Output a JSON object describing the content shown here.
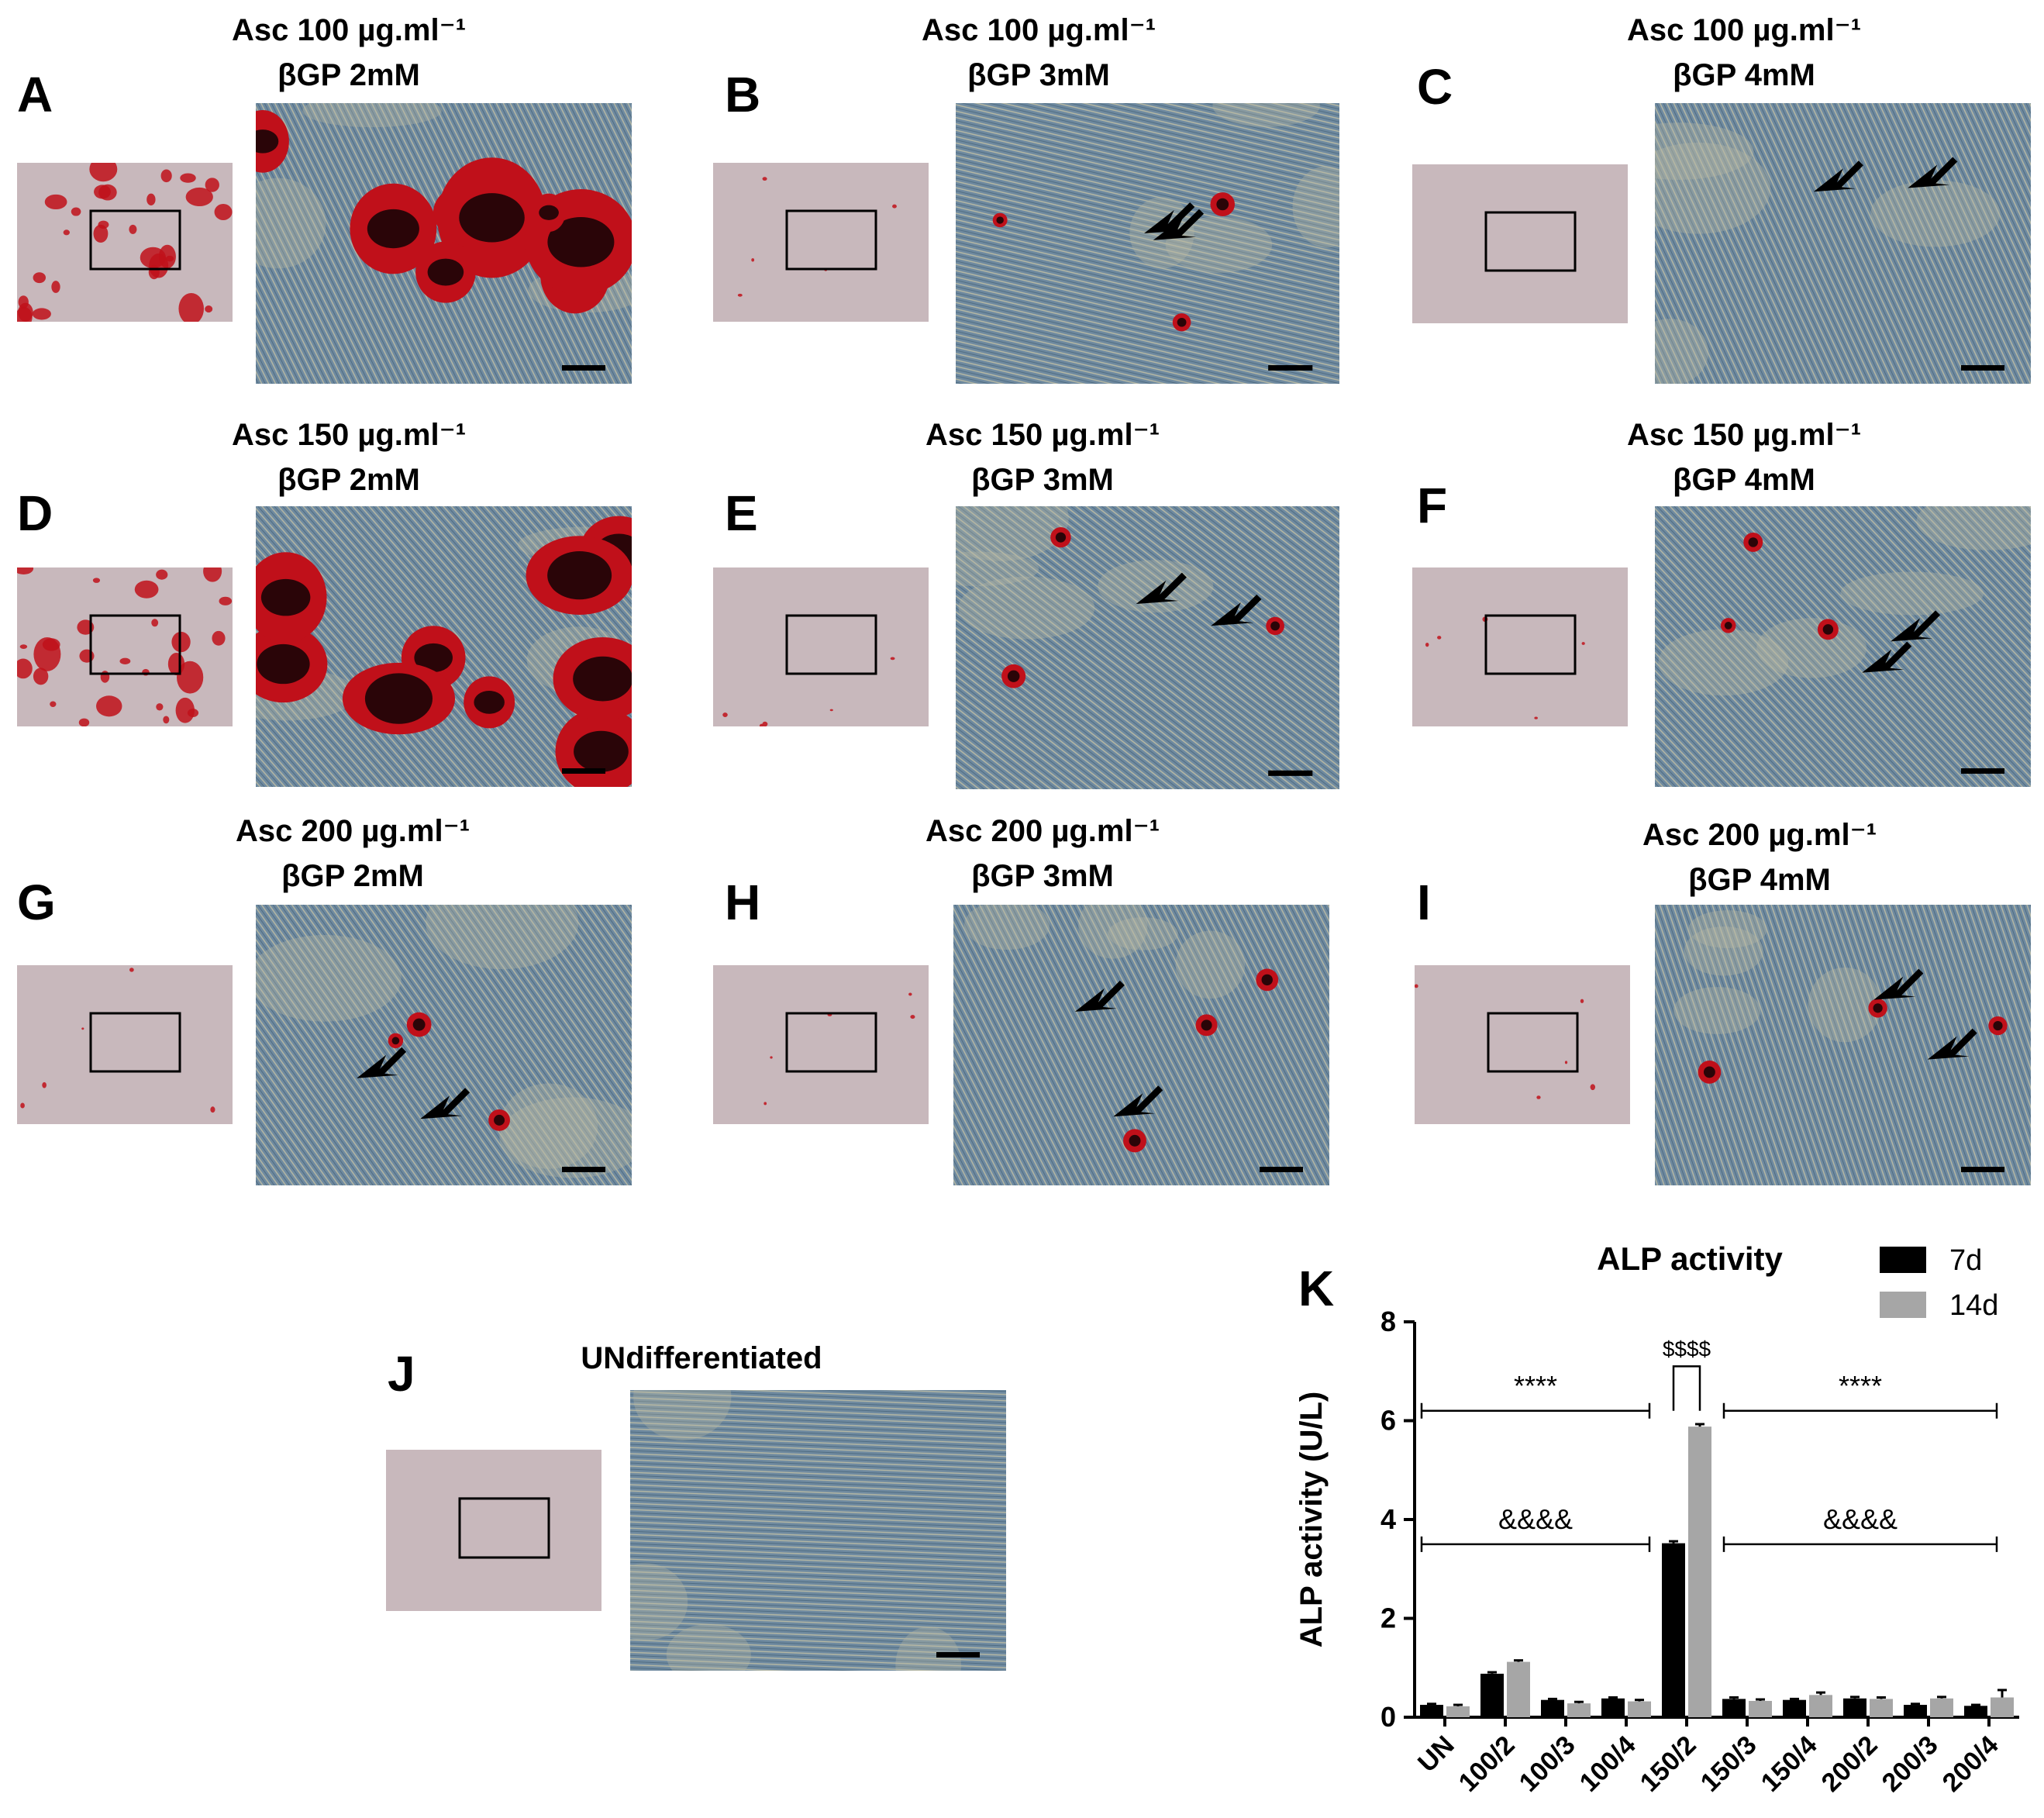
{
  "panels": [
    {
      "letter": "A",
      "asc": "Asc 100 µg.ml⁻¹",
      "bgp": "βGP 2mM",
      "stain": "heavy"
    },
    {
      "letter": "B",
      "asc": "Asc 100 µg.ml⁻¹",
      "bgp": "βGP 3mM",
      "stain": "sparse"
    },
    {
      "letter": "C",
      "asc": "Asc 100 µg.ml⁻¹",
      "bgp": "βGP 4mM",
      "stain": "none"
    },
    {
      "letter": "D",
      "asc": "Asc 150 µg.ml⁻¹",
      "bgp": "βGP 2mM",
      "stain": "heavy"
    },
    {
      "letter": "E",
      "asc": "Asc 150 µg.ml⁻¹",
      "bgp": "βGP 3mM",
      "stain": "sparse"
    },
    {
      "letter": "F",
      "asc": "Asc 150 µg.ml⁻¹",
      "bgp": "βGP 4mM",
      "stain": "sparse"
    },
    {
      "letter": "G",
      "asc": "Asc 200 µg.ml⁻¹",
      "bgp": "βGP 2mM",
      "stain": "sparse"
    },
    {
      "letter": "H",
      "asc": "Asc 200 µg.ml⁻¹",
      "bgp": "βGP 3mM",
      "stain": "sparse"
    },
    {
      "letter": "I",
      "asc": "Asc 200 µg.ml⁻¹",
      "bgp": "βGP 4mM",
      "stain": "sparse"
    },
    {
      "letter": "J",
      "asc": "UNdifferentiated",
      "bgp": "",
      "stain": "none"
    }
  ],
  "colors": {
    "stain": "#c0101a",
    "stain_dark": "#2a0508",
    "cells": "#6f8aa0",
    "cells_light": "#b6b8a4",
    "low_mag": "#c8b8bc",
    "bar_7d": "#000000",
    "bar_14d": "#a6a6a6"
  },
  "chart_letter": "K",
  "chart_data": {
    "type": "bar",
    "title": "ALP activity",
    "ylabel": "ALP activity (U/L)",
    "xlabel": "",
    "ylim": [
      0,
      8
    ],
    "yticks": [
      "0",
      "2",
      "4",
      "6",
      "8"
    ],
    "legend": "top-right",
    "categories": [
      "UN",
      "100/2",
      "100/3",
      "100/4",
      "150/2",
      "150/3",
      "150/4",
      "200/2",
      "200/3",
      "200/4"
    ],
    "series": [
      {
        "name": "7d",
        "values": [
          0.25,
          0.88,
          0.35,
          0.38,
          3.52,
          0.37,
          0.35,
          0.38,
          0.25,
          0.23
        ],
        "errors": [
          0.02,
          0.03,
          0.02,
          0.02,
          0.04,
          0.03,
          0.02,
          0.03,
          0.02,
          0.02
        ]
      },
      {
        "name": "14d",
        "values": [
          0.22,
          1.12,
          0.28,
          0.32,
          5.88,
          0.33,
          0.45,
          0.37,
          0.38,
          0.4
        ],
        "errors": [
          0.03,
          0.03,
          0.03,
          0.03,
          0.05,
          0.03,
          0.05,
          0.03,
          0.03,
          0.15
        ]
      }
    ],
    "annotations": {
      "stars_left": "****",
      "stars_right": "****",
      "amp_left": "&&&&",
      "amp_right": "&&&&",
      "dollar": "$$$$"
    }
  }
}
